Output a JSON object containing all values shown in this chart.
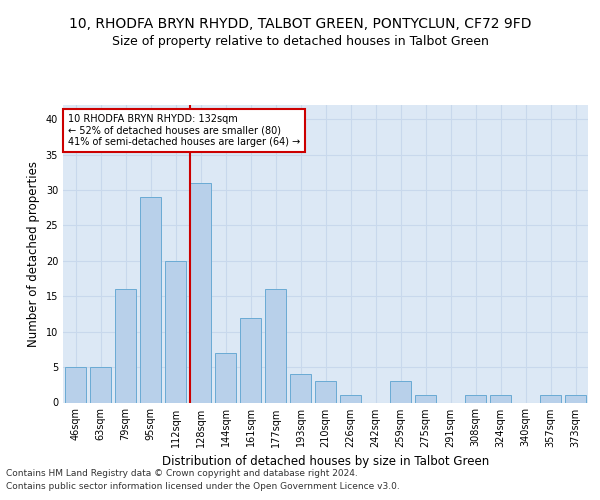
{
  "title1": "10, RHODFA BRYN RHYDD, TALBOT GREEN, PONTYCLUN, CF72 9FD",
  "title2": "Size of property relative to detached houses in Talbot Green",
  "xlabel": "Distribution of detached houses by size in Talbot Green",
  "ylabel": "Number of detached properties",
  "categories": [
    "46sqm",
    "63sqm",
    "79sqm",
    "95sqm",
    "112sqm",
    "128sqm",
    "144sqm",
    "161sqm",
    "177sqm",
    "193sqm",
    "210sqm",
    "226sqm",
    "242sqm",
    "259sqm",
    "275sqm",
    "291sqm",
    "308sqm",
    "324sqm",
    "340sqm",
    "357sqm",
    "373sqm"
  ],
  "values": [
    5,
    5,
    16,
    29,
    20,
    31,
    7,
    12,
    16,
    4,
    3,
    1,
    0,
    3,
    1,
    0,
    1,
    1,
    0,
    1,
    1
  ],
  "bar_color": "#b8d0ea",
  "bar_edge_color": "#6aaad4",
  "highlight_bar_index": 5,
  "highlight_line_color": "#cc0000",
  "annotation_text": "10 RHODFA BRYN RHYDD: 132sqm\n← 52% of detached houses are smaller (80)\n41% of semi-detached houses are larger (64) →",
  "annotation_box_color": "#ffffff",
  "annotation_box_edge": "#cc0000",
  "ylim": [
    0,
    42
  ],
  "yticks": [
    0,
    5,
    10,
    15,
    20,
    25,
    30,
    35,
    40
  ],
  "grid_color": "#c8d8ec",
  "background_color": "#dce8f5",
  "footer_line1": "Contains HM Land Registry data © Crown copyright and database right 2024.",
  "footer_line2": "Contains public sector information licensed under the Open Government Licence v3.0.",
  "title1_fontsize": 10,
  "title2_fontsize": 9,
  "xlabel_fontsize": 8.5,
  "ylabel_fontsize": 8.5,
  "tick_fontsize": 7,
  "footer_fontsize": 6.5
}
